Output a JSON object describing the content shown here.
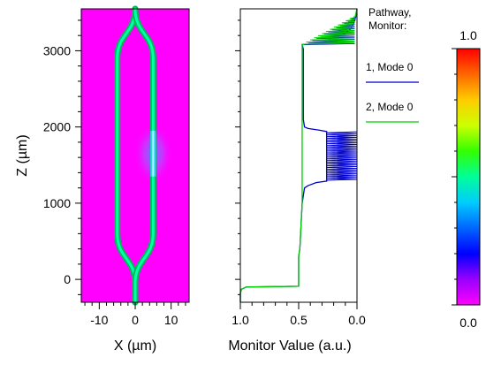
{
  "chart_data": [
    {
      "type": "heatmap",
      "xlabel": "X (µm)",
      "ylabel": "Z (µm)",
      "xlim": [
        -15,
        15
      ],
      "ylim": [
        -300,
        3550
      ],
      "xticks": [
        -10,
        0,
        10
      ],
      "yticks": [
        0,
        1000,
        2000,
        3000
      ],
      "background_color": "#ff00ff",
      "waveguide": {
        "input_x": 0,
        "arm_left_x": -5,
        "arm_right_x": 5,
        "split_start_z": -50,
        "split_end_z": 600,
        "combine_start_z": 2900,
        "combine_end_z": 3550,
        "hot_region_z": [
          1350,
          1950
        ],
        "hot_arm_x": 5
      },
      "colorbar": {
        "min_label": "0.0",
        "max_label": "1.0",
        "colors": [
          "#ff00ff",
          "#9900ff",
          "#0000ff",
          "#0066ff",
          "#00ccff",
          "#00ff99",
          "#33ff00",
          "#ccff00",
          "#ffcc00",
          "#ff6600",
          "#ff0000"
        ]
      }
    },
    {
      "type": "line",
      "xlabel": "Monitor Value (a.u.)",
      "xlim": [
        1.0,
        0.0
      ],
      "ylim": [
        -300,
        3550
      ],
      "xticks": [
        1.0,
        0.5,
        0.0
      ],
      "xtick_labels": [
        "1.0",
        "0.5",
        "0.0"
      ],
      "legend_title": "Pathway, Monitor:",
      "legend_placement": "right",
      "series": [
        {
          "name": "1, Mode 0",
          "color": "#0000cc",
          "points": [
            [
              1.0,
              -300
            ],
            [
              1.0,
              -180
            ],
            [
              0.99,
              -130
            ],
            [
              0.95,
              -100
            ],
            [
              0.7,
              -95
            ],
            [
              0.5,
              -90
            ],
            [
              0.5,
              300
            ],
            [
              0.49,
              400
            ],
            [
              0.48,
              700
            ],
            [
              0.47,
              1000
            ],
            [
              0.46,
              1100
            ],
            [
              0.45,
              1200
            ],
            [
              0.42,
              1230
            ],
            [
              0.35,
              1270
            ],
            [
              0.26,
              1290
            ],
            [
              0.26,
              1940
            ],
            [
              0.33,
              1960
            ],
            [
              0.42,
              1980
            ],
            [
              0.45,
              2000
            ],
            [
              0.46,
              2100
            ],
            [
              0.46,
              2600
            ],
            [
              0.46,
              3020
            ],
            [
              0.47,
              3080
            ],
            [
              0.25,
              3100
            ],
            [
              0.15,
              3200
            ],
            [
              0.1,
              3230
            ],
            [
              0.06,
              3280
            ],
            [
              0.03,
              3350
            ],
            [
              0.01,
              3450
            ],
            [
              0.0,
              3550
            ]
          ]
        },
        {
          "name": "2, Mode 0",
          "color": "#00cc00",
          "points": [
            [
              1.0,
              -300
            ],
            [
              1.0,
              -180
            ],
            [
              0.99,
              -130
            ],
            [
              0.95,
              -100
            ],
            [
              0.7,
              -95
            ],
            [
              0.5,
              -90
            ],
            [
              0.5,
              300
            ],
            [
              0.49,
              400
            ],
            [
              0.48,
              700
            ],
            [
              0.47,
              1000
            ],
            [
              0.47,
              1500
            ],
            [
              0.47,
              2000
            ],
            [
              0.47,
              2500
            ],
            [
              0.47,
              3000
            ],
            [
              0.47,
              3080
            ],
            [
              0.3,
              3100
            ],
            [
              0.2,
              3180
            ],
            [
              0.12,
              3250
            ],
            [
              0.06,
              3320
            ],
            [
              0.02,
              3420
            ],
            [
              0.0,
              3550
            ]
          ]
        }
      ]
    }
  ]
}
